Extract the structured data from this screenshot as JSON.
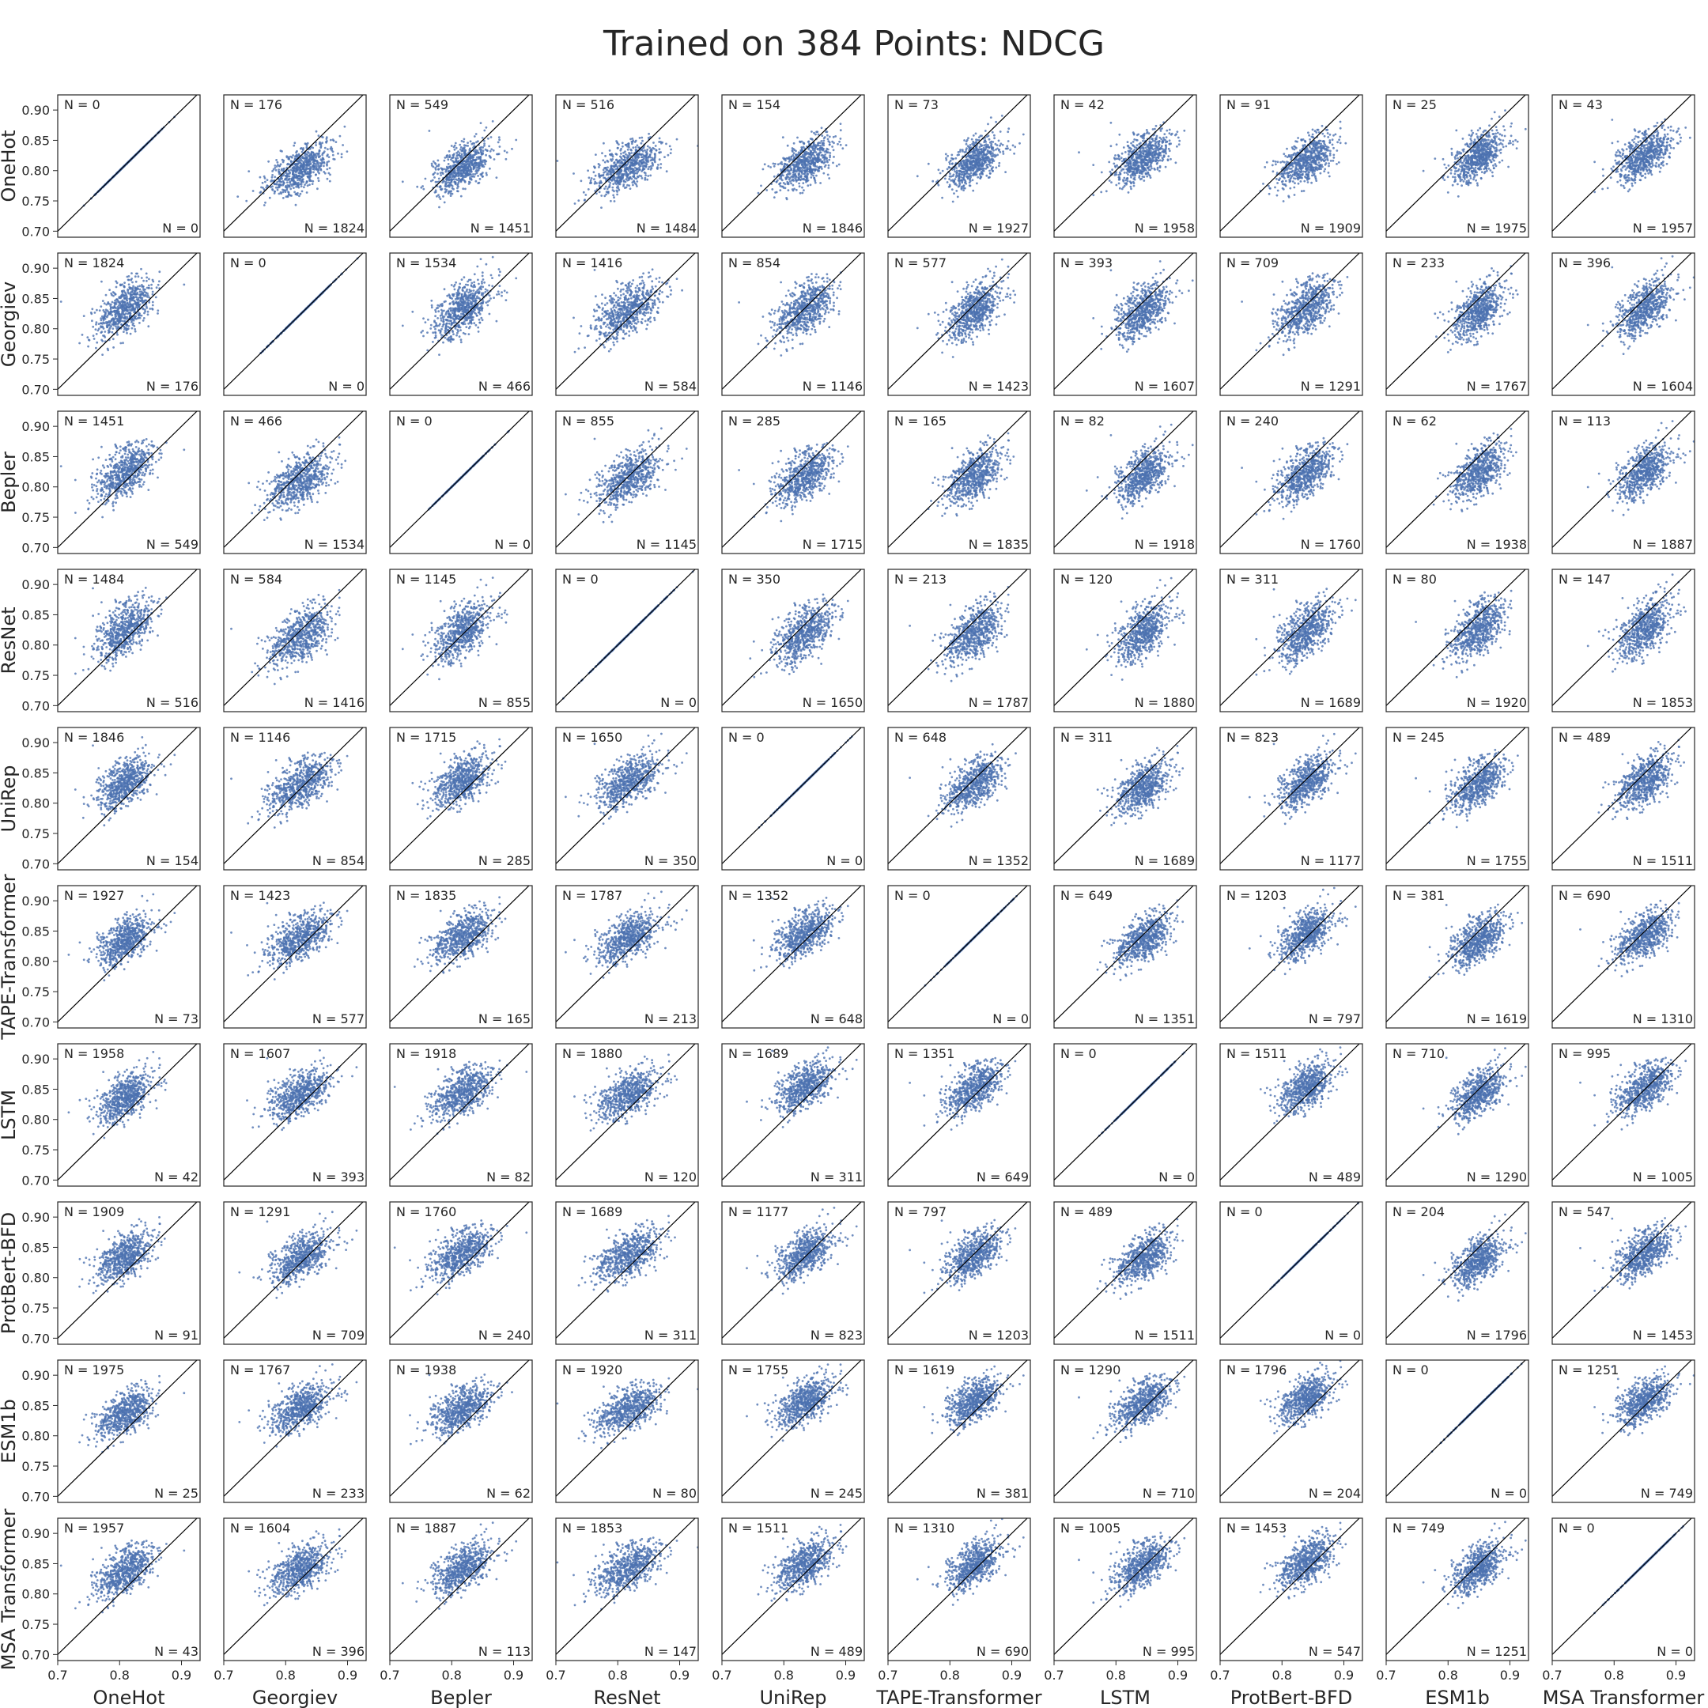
{
  "chart_data": {
    "type": "scatter",
    "title": "Trained on 384 Points: NDCG",
    "models": [
      "OneHot",
      "Georgiev",
      "Bepler",
      "ResNet",
      "UniRep",
      "TAPE-Transformer",
      "LSTM",
      "ProtBert-BFD",
      "ESM1b",
      "MSA Transformer"
    ],
    "xlim": [
      0.7,
      0.93
    ],
    "ylim": [
      0.69,
      0.925
    ],
    "x_ticks": [
      "0.7",
      "0.8",
      "0.9"
    ],
    "y_ticks": [
      "0.70",
      "0.75",
      "0.80",
      "0.85",
      "0.90"
    ],
    "grid": false,
    "point_color": "#4c72b0",
    "diagonal_color": "#000000",
    "centers": [
      0.81,
      0.825,
      0.818,
      0.818,
      0.835,
      0.84,
      0.845,
      0.84,
      0.85,
      0.85
    ],
    "spreads": [
      0.022,
      0.025,
      0.024,
      0.026,
      0.023,
      0.022,
      0.022,
      0.022,
      0.021,
      0.022
    ],
    "counts_above": [
      [
        0,
        176,
        549,
        516,
        154,
        73,
        42,
        91,
        25,
        43
      ],
      [
        1824,
        0,
        1534,
        1416,
        854,
        577,
        393,
        709,
        233,
        396
      ],
      [
        1451,
        466,
        0,
        855,
        285,
        165,
        82,
        240,
        62,
        113
      ],
      [
        1484,
        584,
        1145,
        0,
        350,
        213,
        120,
        311,
        80,
        147
      ],
      [
        1846,
        1146,
        1715,
        1650,
        0,
        648,
        311,
        823,
        245,
        489
      ],
      [
        1927,
        1423,
        1835,
        1787,
        1352,
        0,
        649,
        1203,
        381,
        690
      ],
      [
        1958,
        1607,
        1918,
        1880,
        1689,
        1351,
        0,
        1511,
        710,
        995
      ],
      [
        1909,
        1291,
        1760,
        1689,
        1177,
        797,
        489,
        0,
        204,
        547
      ],
      [
        1975,
        1767,
        1938,
        1920,
        1755,
        1619,
        1290,
        1796,
        0,
        1251
      ],
      [
        1957,
        1604,
        1887,
        1853,
        1511,
        1310,
        1005,
        1453,
        749,
        0
      ]
    ],
    "counts_below": [
      [
        0,
        1824,
        1451,
        1484,
        1846,
        1927,
        1958,
        1909,
        1975,
        1957
      ],
      [
        176,
        0,
        466,
        584,
        1146,
        1423,
        1607,
        1291,
        1767,
        1604
      ],
      [
        549,
        1534,
        0,
        1145,
        1715,
        1835,
        1918,
        1760,
        1938,
        1887
      ],
      [
        516,
        1416,
        855,
        0,
        1650,
        1787,
        1880,
        1689,
        1920,
        1853
      ],
      [
        154,
        854,
        285,
        350,
        0,
        1352,
        1689,
        1177,
        1755,
        1511
      ],
      [
        73,
        577,
        165,
        213,
        648,
        0,
        1351,
        797,
        1619,
        1310
      ],
      [
        42,
        393,
        82,
        120,
        311,
        649,
        0,
        489,
        1290,
        1005
      ],
      [
        91,
        709,
        240,
        311,
        823,
        1203,
        1511,
        0,
        1796,
        1453
      ],
      [
        25,
        233,
        62,
        80,
        245,
        381,
        710,
        204,
        0,
        749
      ],
      [
        43,
        396,
        113,
        147,
        489,
        690,
        995,
        547,
        1251,
        0
      ]
    ],
    "count_label_prefix": "N = "
  }
}
